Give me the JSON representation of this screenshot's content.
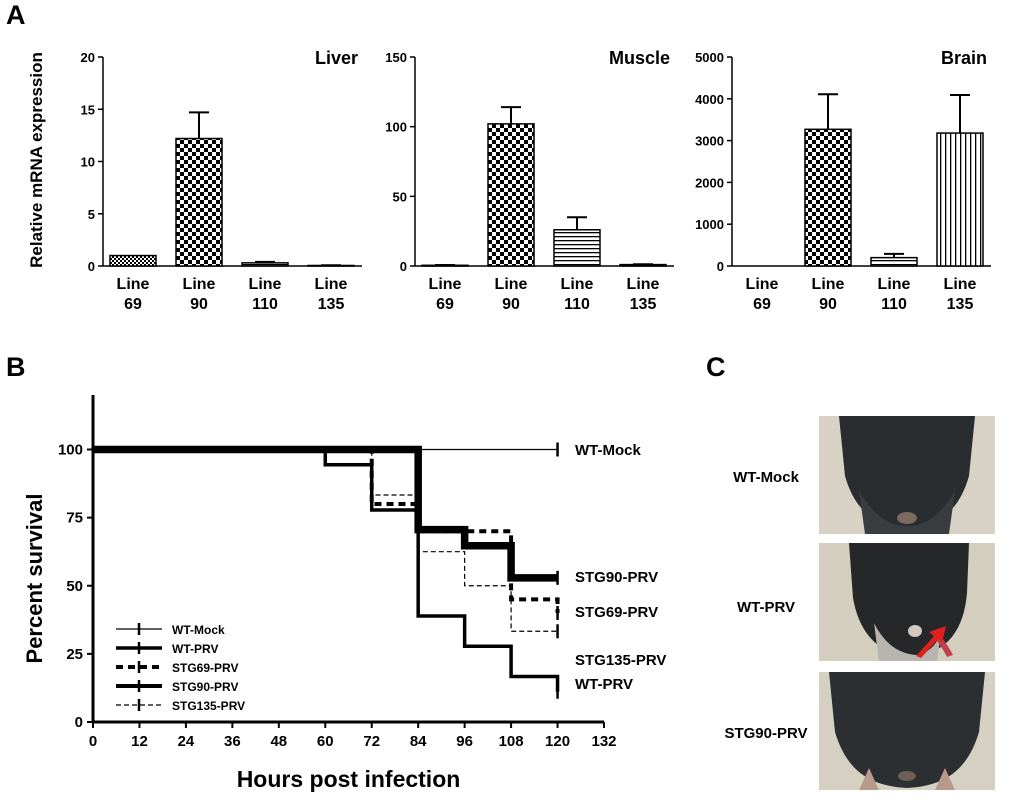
{
  "panels": {
    "a": "A",
    "b": "B",
    "c": "C"
  },
  "chart_data": [
    {
      "type": "bar",
      "title": "Liver",
      "ylabel": "Relative mRNA expression",
      "categories": [
        "Line 69",
        "Line 90",
        "Line 110",
        "Line 135"
      ],
      "values": [
        1.0,
        12.2,
        0.3,
        0.05
      ],
      "errors": [
        0.0,
        2.5,
        0.1,
        0.02
      ],
      "ylim": [
        0,
        20
      ],
      "yticks": [
        0,
        5,
        10,
        15,
        20
      ]
    },
    {
      "type": "bar",
      "title": "Muscle",
      "categories": [
        "Line 69",
        "Line 90",
        "Line 110",
        "Line 135"
      ],
      "values": [
        0.5,
        102,
        26,
        1.0
      ],
      "errors": [
        0.2,
        12,
        9,
        0.3
      ],
      "ylim": [
        0,
        150
      ],
      "yticks": [
        0,
        50,
        100,
        150
      ]
    },
    {
      "type": "bar",
      "title": "Brain",
      "categories": [
        "Line 69",
        "Line 90",
        "Line 110",
        "Line 135"
      ],
      "values": [
        0,
        3270,
        200,
        3180
      ],
      "errors": [
        0,
        840,
        90,
        910
      ],
      "ylim": [
        0,
        5000
      ],
      "yticks": [
        0,
        1000,
        2000,
        3000,
        4000,
        5000
      ]
    },
    {
      "type": "line",
      "xlabel": "Hours post infection",
      "ylabel": "Percent survival",
      "xlim": [
        0,
        132
      ],
      "ylim": [
        0,
        120
      ],
      "xticks": [
        0,
        12,
        24,
        36,
        48,
        60,
        72,
        84,
        96,
        108,
        120,
        132
      ],
      "yticks": [
        0,
        25,
        50,
        75,
        100
      ],
      "series": [
        {
          "name": "WT-Mock",
          "x": [
            0,
            120
          ],
          "y": [
            100,
            100
          ],
          "end_label": "WT-Mock"
        },
        {
          "name": "WT-PRV",
          "x": [
            0,
            60,
            72,
            84,
            96,
            108,
            120
          ],
          "y": [
            100,
            94.4,
            77.8,
            38.9,
            27.8,
            16.7,
            11.1
          ],
          "end_label": "WT-PRV"
        },
        {
          "name": "STG69-PRV",
          "x": [
            0,
            72,
            84,
            108,
            120
          ],
          "y": [
            100,
            80,
            70,
            45,
            40
          ],
          "end_label": "STG69-PRV"
        },
        {
          "name": "STG90-PRV",
          "x": [
            0,
            84,
            96,
            108,
            120
          ],
          "y": [
            100,
            70.6,
            64.7,
            52.9,
            52.9
          ],
          "end_label": "STG90-PRV"
        },
        {
          "name": "STG135-PRV",
          "x": [
            0,
            72,
            84,
            96,
            108,
            120
          ],
          "y": [
            100,
            83.3,
            62.5,
            50,
            33.3,
            33.3
          ],
          "end_label": "STG135-PRV"
        }
      ]
    }
  ],
  "photos": {
    "labels": [
      "WT-Mock",
      "WT-PRV",
      "STG90-PRV"
    ]
  },
  "colors": {
    "arrow": "#e02020"
  }
}
